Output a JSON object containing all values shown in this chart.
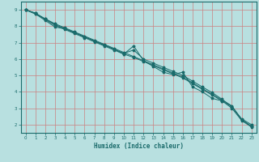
{
  "xlabel": "Humidex (Indice chaleur)",
  "xlim": [
    -0.5,
    23.5
  ],
  "ylim": [
    1.5,
    9.5
  ],
  "bg_color": "#b8e0e0",
  "line_color": "#1a6b6b",
  "grid_color": "#cc8080",
  "line1_x": [
    0,
    1,
    2,
    3,
    4,
    5,
    6,
    7,
    8,
    9,
    10,
    11,
    12,
    13,
    14,
    15,
    16,
    17,
    18,
    19,
    20,
    21,
    22,
    23
  ],
  "line1_y": [
    9.0,
    8.8,
    8.45,
    8.15,
    7.9,
    7.65,
    7.4,
    7.15,
    6.9,
    6.65,
    6.4,
    6.15,
    5.9,
    5.65,
    5.4,
    5.15,
    4.9,
    4.55,
    4.2,
    3.85,
    3.5,
    3.15,
    2.3,
    1.9
  ],
  "line2_x": [
    0,
    1,
    2,
    3,
    4,
    5,
    6,
    7,
    8,
    9,
    10,
    11,
    12,
    13,
    14,
    15,
    16,
    17,
    18,
    19,
    20,
    21,
    22,
    23
  ],
  "line2_y": [
    9.0,
    8.75,
    8.45,
    8.1,
    7.85,
    7.6,
    7.35,
    7.1,
    6.85,
    6.6,
    6.35,
    6.55,
    6.0,
    5.75,
    5.5,
    5.25,
    5.0,
    4.65,
    4.3,
    3.95,
    3.55,
    3.1,
    2.35,
    2.0
  ],
  "line3_x": [
    0,
    1,
    2,
    3,
    4,
    5,
    6,
    7,
    8,
    9,
    10,
    11,
    12,
    13,
    14,
    15,
    16,
    17,
    18,
    19,
    20,
    21,
    22,
    23
  ],
  "line3_y": [
    9.0,
    8.75,
    8.35,
    7.95,
    7.85,
    7.6,
    7.35,
    7.1,
    6.85,
    6.6,
    6.3,
    6.8,
    5.9,
    5.55,
    5.2,
    5.05,
    5.2,
    4.3,
    4.0,
    3.6,
    3.45,
    3.0,
    2.25,
    1.85
  ],
  "line4_x": [
    0,
    1,
    2,
    3,
    4,
    5,
    6,
    7,
    8,
    9,
    10,
    11,
    12,
    13,
    14,
    15,
    16,
    17,
    18,
    19,
    20,
    21,
    22,
    23
  ],
  "line4_y": [
    9.0,
    8.8,
    8.4,
    8.05,
    7.8,
    7.55,
    7.3,
    7.05,
    6.8,
    6.55,
    6.3,
    6.1,
    5.85,
    5.6,
    5.35,
    5.1,
    4.85,
    4.5,
    4.15,
    3.8,
    3.45,
    3.1,
    2.3,
    1.9
  ]
}
